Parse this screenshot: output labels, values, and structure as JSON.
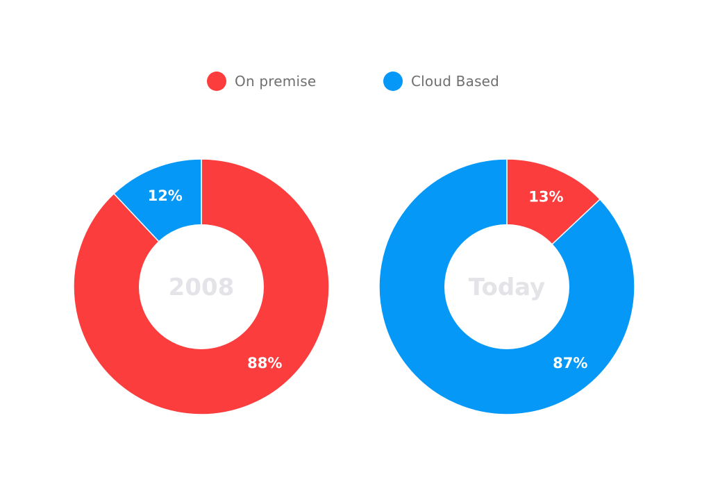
{
  "legend": {
    "items": [
      {
        "label": "On premise",
        "color": "#fb3d3d"
      },
      {
        "label": "Cloud Based",
        "color": "#0598f7"
      }
    ]
  },
  "chart_data": [
    {
      "type": "pie",
      "center_label": "2008",
      "categories": [
        "On premise",
        "Cloud Based"
      ],
      "values": [
        88,
        12
      ],
      "labels": [
        "88%",
        "12%"
      ],
      "colors": [
        "#fb3d3d",
        "#0598f7"
      ],
      "legend": "top-center"
    },
    {
      "type": "pie",
      "center_label": "Today",
      "categories": [
        "On premise",
        "Cloud Based"
      ],
      "values": [
        13,
        87
      ],
      "labels": [
        "13%",
        "87%"
      ],
      "colors": [
        "#fb3d3d",
        "#0598f7"
      ],
      "legend": "top-center"
    }
  ]
}
